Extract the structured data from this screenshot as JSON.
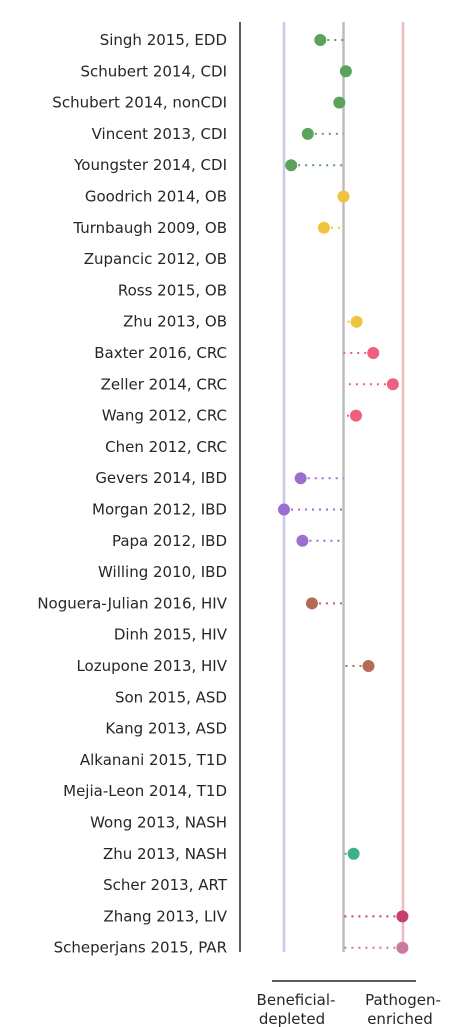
{
  "chart_data": {
    "type": "scatter",
    "title": "",
    "xlabel_left": [
      "Beneficial-",
      "depleted"
    ],
    "xlabel_right": [
      "Pathogen-",
      "enriched"
    ],
    "xlim": [
      -1.1,
      1.1
    ],
    "reference_lines": [
      {
        "x": -1,
        "color": "#c8c8ee"
      },
      {
        "x": 0,
        "color": "#bdbdbd"
      },
      {
        "x": 1,
        "color": "#f2b8bf"
      }
    ],
    "categories": [
      "Singh 2015, EDD",
      "Schubert 2014, CDI",
      "Schubert 2014, nonCDI",
      "Vincent 2013, CDI",
      "Youngster 2014, CDI",
      "Goodrich 2014, OB",
      "Turnbaugh 2009, OB",
      "Zupancic 2012, OB",
      "Ross 2015, OB",
      "Zhu 2013, OB",
      "Baxter 2016, CRC",
      "Zeller 2014, CRC",
      "Wang 2012, CRC",
      "Chen 2012, CRC",
      "Gevers 2014, IBD",
      "Morgan 2012, IBD",
      "Papa 2012, IBD",
      "Willing 2010, IBD",
      "Noguera-Julian 2016, HIV",
      "Dinh 2015, HIV",
      "Lozupone 2013, HIV",
      "Son 2015, ASD",
      "Kang 2013, ASD",
      "Alkanani 2015, T1D",
      "Mejia-Leon 2014, T1D",
      "Wong 2013, NASH",
      "Zhu 2013, NASH",
      "Scher 2013, ART",
      "Zhang 2013, LIV",
      "Scheperjans 2015, PAR"
    ],
    "values": [
      -0.39,
      0.04,
      -0.07,
      -0.6,
      -0.88,
      0.0,
      -0.33,
      null,
      null,
      0.22,
      0.5,
      0.83,
      0.21,
      null,
      -0.72,
      -1.0,
      -0.69,
      null,
      -0.53,
      null,
      0.42,
      null,
      null,
      null,
      null,
      null,
      0.17,
      null,
      0.99,
      0.99
    ],
    "colors": [
      "#5ba35b",
      "#5ba35b",
      "#5ba35b",
      "#5ba35b",
      "#5ba35b",
      "#efc53f",
      "#efc53f",
      "#efc53f",
      "#efc53f",
      "#efc53f",
      "#ef5f7f",
      "#ef5f7f",
      "#ef5f7f",
      "#ef5f7f",
      "#9b6fd0",
      "#9b6fd0",
      "#9b6fd0",
      "#9b6fd0",
      "#b56a58",
      "#b56a58",
      "#b56a58",
      "#888888",
      "#888888",
      "#888888",
      "#888888",
      "#3fae8c",
      "#3fae8c",
      "#888888",
      "#c8406a",
      "#c97a9d"
    ],
    "grid": false
  }
}
